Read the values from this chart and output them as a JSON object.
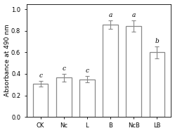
{
  "categories": [
    "CK",
    "Nc",
    "L",
    "B",
    "NcB",
    "LB"
  ],
  "values": [
    0.31,
    0.365,
    0.35,
    0.855,
    0.845,
    0.6
  ],
  "errors": [
    0.025,
    0.035,
    0.03,
    0.04,
    0.05,
    0.055
  ],
  "letters": [
    "c",
    "c",
    "c",
    "a",
    "a",
    "b"
  ],
  "bar_color": "#ffffff",
  "bar_edgecolor": "#888888",
  "error_color": "#888888",
  "ylabel": "Absorbance at 490 nm",
  "ylim": [
    0.0,
    1.05
  ],
  "yticks": [
    0.0,
    0.2,
    0.4,
    0.6,
    0.8,
    1.0
  ],
  "letter_fontsize": 6.5,
  "label_fontsize": 6.5,
  "tick_fontsize": 6.0,
  "bar_width": 0.65
}
